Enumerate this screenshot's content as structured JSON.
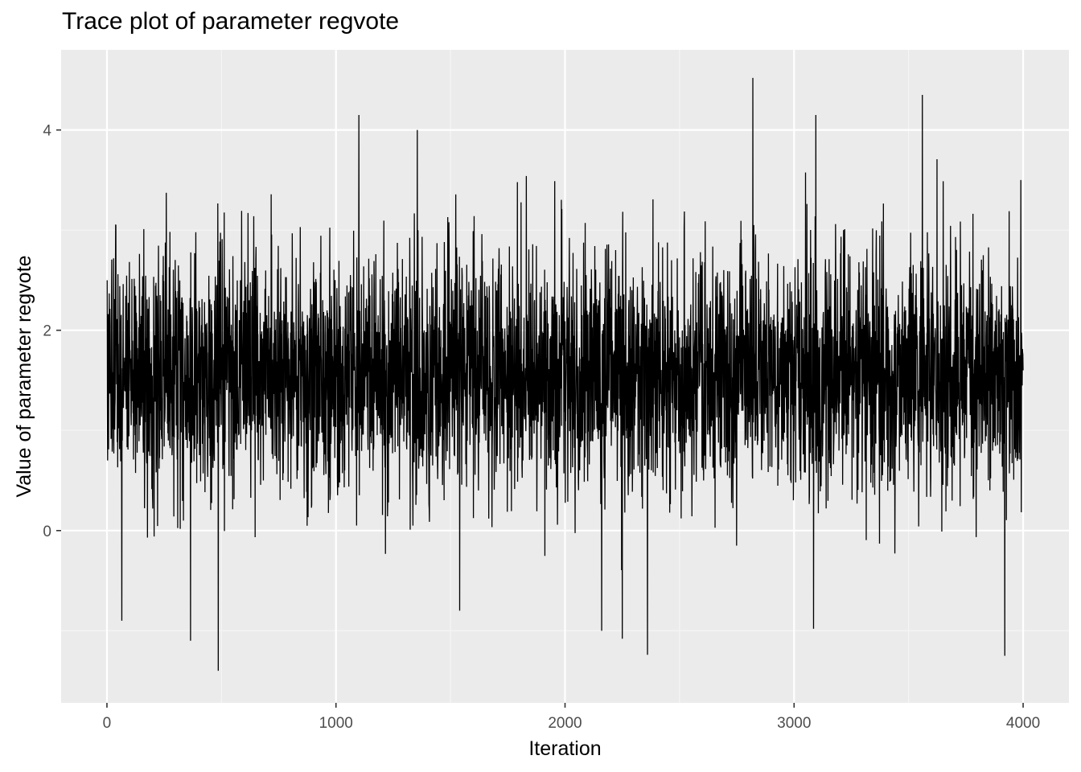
{
  "chart_data": {
    "type": "line",
    "title": "Trace plot of parameter regvote",
    "xlabel": "Iteration",
    "ylabel": "Value of parameter regvote",
    "xlim": [
      -200,
      4200
    ],
    "ylim": [
      -1.72,
      4.8
    ],
    "x_major_ticks": [
      0,
      1000,
      2000,
      3000,
      4000
    ],
    "x_minor_ticks": [
      500,
      1500,
      2500,
      3500
    ],
    "y_major_ticks": [
      0,
      2,
      4
    ],
    "y_minor_ticks": [
      -1,
      1,
      3
    ],
    "tick_labels_x": [
      "0",
      "1000",
      "2000",
      "3000",
      "4000"
    ],
    "tick_labels_y": [
      "0",
      "2",
      "4"
    ],
    "grid": true,
    "series": [
      {
        "n_iterations": 4000,
        "center": 1.55,
        "spread": 0.62,
        "color": "#000000",
        "annotated_points": [
          {
            "x": 1,
            "y": 2.5
          },
          {
            "x": 3,
            "y": 0.7
          },
          {
            "x": 65,
            "y": -0.9
          },
          {
            "x": 365,
            "y": -1.1
          },
          {
            "x": 486,
            "y": -1.4
          },
          {
            "x": 1100,
            "y": 4.15
          },
          {
            "x": 1355,
            "y": 4.0
          },
          {
            "x": 1540,
            "y": -0.8
          },
          {
            "x": 2160,
            "y": -1.0
          },
          {
            "x": 2250,
            "y": -1.08
          },
          {
            "x": 2360,
            "y": -1.24
          },
          {
            "x": 2820,
            "y": 4.52
          },
          {
            "x": 3085,
            "y": -0.98
          },
          {
            "x": 3095,
            "y": 4.15
          },
          {
            "x": 3560,
            "y": 4.35
          },
          {
            "x": 3920,
            "y": -1.25
          },
          {
            "x": 3990,
            "y": 3.5
          },
          {
            "x": 4000,
            "y": 1.6
          }
        ]
      }
    ]
  },
  "colors": {
    "panel_background": "#ebebeb",
    "grid_major": "#ffffff",
    "grid_minor": "#f5f5f5",
    "line": "#000000",
    "tick_text": "#4d4d4d",
    "tick_mark": "#333333"
  }
}
